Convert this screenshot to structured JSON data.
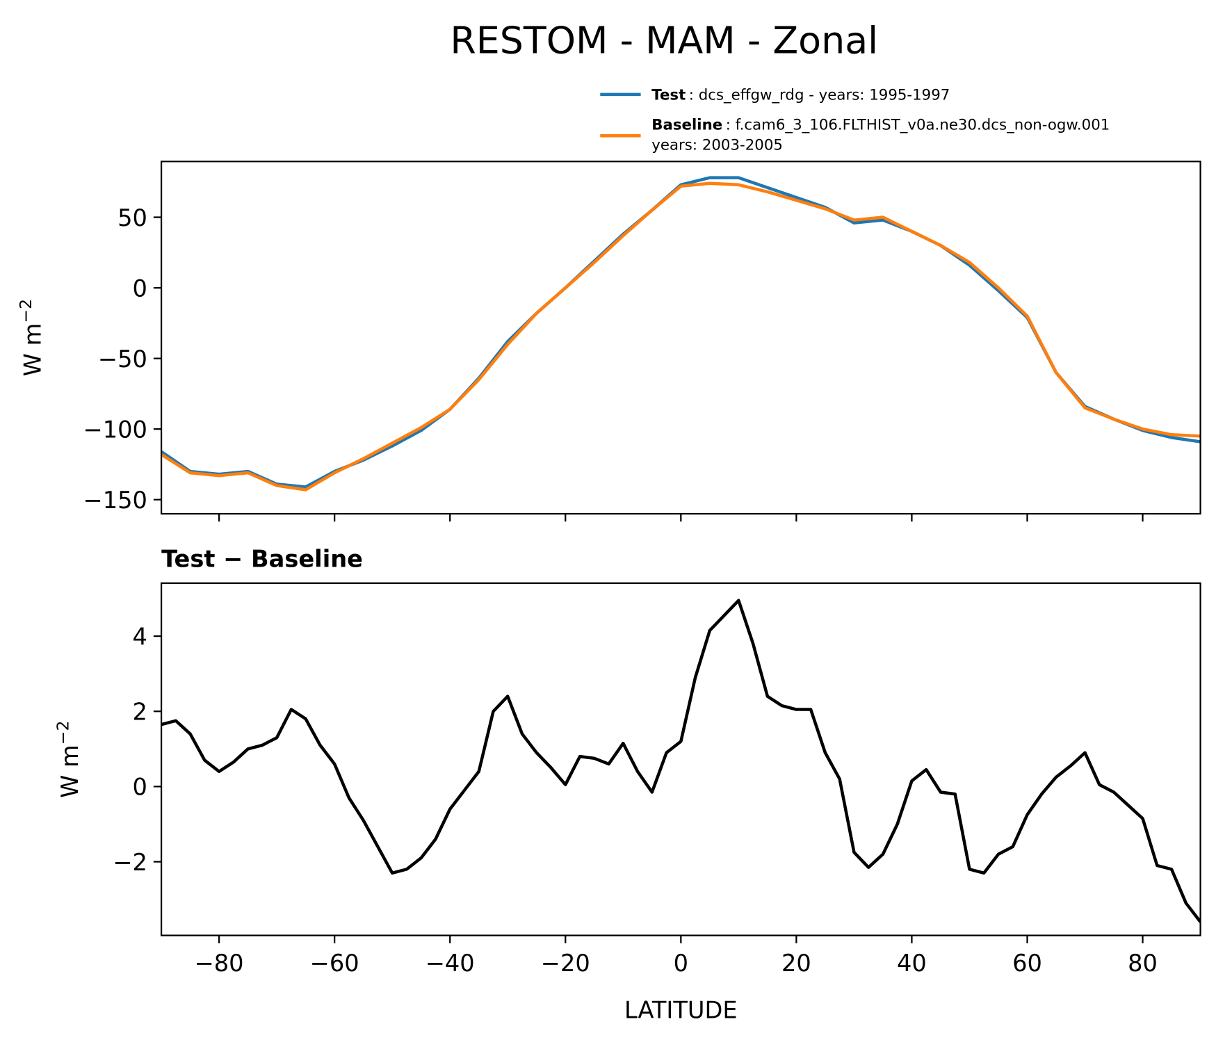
{
  "chart_data": [
    {
      "type": "line",
      "title": "RESTOM - MAM - Zonal",
      "ylabel": [
        "W m",
        "−2"
      ],
      "x": [
        -90,
        -85,
        -80,
        -75,
        -70,
        -65,
        -60,
        -55,
        -50,
        -45,
        -40,
        -35,
        -30,
        -25,
        -20,
        -15,
        -10,
        -5,
        0,
        5,
        10,
        15,
        20,
        25,
        30,
        35,
        40,
        45,
        50,
        55,
        60,
        65,
        70,
        75,
        80,
        85,
        90
      ],
      "series": [
        {
          "name": "Test",
          "label": ": dcs_effgw_rdg - years: 1995-1997",
          "color": "#1f77b4",
          "values": [
            -116,
            -130,
            -132,
            -130,
            -139,
            -141,
            -130,
            -122,
            -112,
            -101,
            -86,
            -64,
            -38,
            -18,
            0,
            19,
            38,
            55,
            73,
            78,
            78,
            71,
            64,
            57,
            46,
            48,
            40,
            30,
            16,
            -2,
            -21,
            -60,
            -84,
            -93,
            -101,
            -106,
            -109
          ]
        },
        {
          "name": "Baseline",
          "label_lines": [
            ": f.cam6_3_106.FLTHIST_v0a.ne30.dcs_non-ogw.001",
            "years: 2003-2005"
          ],
          "color": "#ff7f0e",
          "values": [
            -118,
            -131,
            -133,
            -131,
            -140,
            -143,
            -131,
            -121,
            -110,
            -99,
            -86,
            -65,
            -40,
            -18,
            0,
            18,
            37,
            55,
            72,
            74,
            73,
            68,
            62,
            56,
            48,
            50,
            40,
            30,
            18,
            0,
            -20,
            -60,
            -85,
            -93,
            -100,
            -104,
            -105
          ]
        }
      ],
      "xlim": [
        -90,
        90
      ],
      "xticks": [
        -80,
        -60,
        -40,
        -20,
        0,
        20,
        40,
        60,
        80
      ],
      "ylim": [
        -160,
        89.5
      ],
      "yticks": [
        {
          "value": -150,
          "label": "−150"
        },
        {
          "value": -100,
          "label": "−100"
        },
        {
          "value": -50,
          "label": "−50"
        },
        0,
        50
      ]
    },
    {
      "type": "line",
      "title": "Test − Baseline",
      "xlabel": "LATITUDE",
      "ylabel": [
        "W m",
        "−2"
      ],
      "x": [
        -90,
        -87.5,
        -85,
        -82.5,
        -80,
        -77.5,
        -75,
        -72.5,
        -70,
        -67.5,
        -65,
        -62.5,
        -60,
        -57.5,
        -55,
        -52.5,
        -50,
        -47.5,
        -45,
        -42.5,
        -40,
        -37.5,
        -35,
        -32.5,
        -30,
        -27.5,
        -25,
        -22.5,
        -20,
        -17.5,
        -15,
        -12.5,
        -10,
        -7.5,
        -5,
        -2.5,
        0,
        2.5,
        5,
        7.5,
        10,
        12.5,
        15,
        17.5,
        20,
        22.5,
        25,
        27.5,
        30,
        32.5,
        35,
        37.5,
        40,
        42.5,
        45,
        47.5,
        50,
        52.5,
        55,
        57.5,
        60,
        62.5,
        65,
        67.5,
        70,
        72.5,
        75,
        77.5,
        80,
        82.5,
        85,
        87.5,
        90
      ],
      "series": [
        {
          "color": "#000000",
          "values": [
            1.65,
            1.75,
            1.4,
            0.7,
            0.4,
            0.65,
            1.0,
            1.1,
            1.3,
            2.05,
            1.8,
            1.1,
            0.6,
            -0.3,
            -0.9,
            -1.6,
            -2.3,
            -2.2,
            -1.9,
            -1.4,
            -0.6,
            -0.1,
            0.4,
            2.0,
            2.4,
            1.4,
            0.9,
            0.5,
            0.05,
            0.8,
            0.75,
            0.6,
            1.15,
            0.4,
            -0.15,
            0.9,
            1.2,
            2.9,
            4.15,
            4.55,
            4.95,
            3.8,
            2.4,
            2.15,
            2.05,
            2.05,
            0.9,
            0.2,
            -1.75,
            -2.15,
            -1.8,
            -1.0,
            0.15,
            0.45,
            -0.15,
            -0.2,
            -2.2,
            -2.3,
            -1.8,
            -1.6,
            -0.75,
            -0.2,
            0.25,
            0.55,
            0.9,
            0.05,
            -0.15,
            -0.5,
            -0.85,
            -2.1,
            -2.2,
            -3.1,
            -3.6
          ]
        }
      ],
      "xlim": [
        -90,
        90
      ],
      "xticks": [
        {
          "value": -80,
          "label": "−80"
        },
        {
          "value": -60,
          "label": "−60"
        },
        {
          "value": -40,
          "label": "−40"
        },
        {
          "value": -20,
          "label": "−20"
        },
        0,
        20,
        40,
        60,
        80
      ],
      "ylim": [
        -3.96,
        5.41
      ],
      "yticks": [
        {
          "value": -2,
          "label": "−2"
        },
        0,
        2,
        4
      ]
    }
  ]
}
